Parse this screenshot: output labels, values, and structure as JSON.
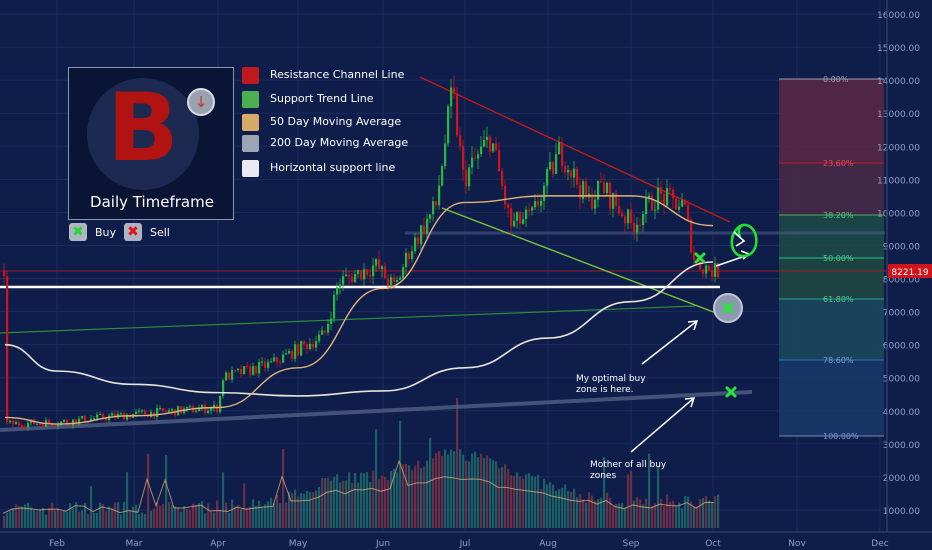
{
  "chart_data": {
    "type": "candlestick",
    "y_axis": {
      "ticks": [
        "16000.00",
        "15000.00",
        "14000.00",
        "13000.00",
        "12000.00",
        "11000.00",
        "10000.00",
        "9000.00",
        "8000.00",
        "7000.00",
        "6000.00",
        "5000.00",
        "4000.00",
        "3000.00",
        "2000.00",
        "1000.00"
      ],
      "current_price": "8221.19"
    },
    "x_axis": {
      "ticks": [
        "Feb",
        "Mar",
        "Apr",
        "May",
        "Jun",
        "Jul",
        "Aug",
        "Sep",
        "Oct",
        "Nov",
        "Dec"
      ]
    },
    "price_path": [
      {
        "x": "Jan",
        "y": 3600
      },
      {
        "x": "Feb",
        "y": 3650
      },
      {
        "x": "Mar",
        "y": 3900
      },
      {
        "x": "Apr 1",
        "y": 4100
      },
      {
        "x": "Apr 2",
        "y": 5000
      },
      {
        "x": "Apr 20",
        "y": 5400
      },
      {
        "x": "May 10",
        "y": 6300
      },
      {
        "x": "May 15",
        "y": 7900
      },
      {
        "x": "May 28",
        "y": 8400
      },
      {
        "x": "Jun 5",
        "y": 7700
      },
      {
        "x": "Jun 10",
        "y": 8800
      },
      {
        "x": "Jun 20",
        "y": 10200
      },
      {
        "x": "Jun 26",
        "y": 13700
      },
      {
        "x": "Jun 30",
        "y": 11000
      },
      {
        "x": "Jul 10",
        "y": 12300
      },
      {
        "x": "Jul 17",
        "y": 9600
      },
      {
        "x": "Jul 25",
        "y": 9900
      },
      {
        "x": "Aug 5",
        "y": 11900
      },
      {
        "x": "Aug 15",
        "y": 10300
      },
      {
        "x": "Aug 20",
        "y": 10800
      },
      {
        "x": "Sep 1",
        "y": 9600
      },
      {
        "x": "Sep 10",
        "y": 10500
      },
      {
        "x": "Sep 20",
        "y": 10200
      },
      {
        "x": "Sep 24",
        "y": 8500
      },
      {
        "x": "Oct 1",
        "y": 8221
      }
    ],
    "ma50": [
      {
        "x": "Jan",
        "y": 3800
      },
      {
        "x": "Feb",
        "y": 3600
      },
      {
        "x": "Mar",
        "y": 3850
      },
      {
        "x": "Apr",
        "y": 4100
      },
      {
        "x": "May",
        "y": 5300
      },
      {
        "x": "Jun",
        "y": 7700
      },
      {
        "x": "Jul",
        "y": 10300
      },
      {
        "x": "Aug",
        "y": 10500
      },
      {
        "x": "Sep",
        "y": 10500
      },
      {
        "x": "Oct",
        "y": 9600
      }
    ],
    "ma200": [
      {
        "x": "Jan",
        "y": 6000
      },
      {
        "x": "Feb",
        "y": 5200
      },
      {
        "x": "Mar",
        "y": 4800
      },
      {
        "x": "Apr",
        "y": 4550
      },
      {
        "x": "May",
        "y": 4450
      },
      {
        "x": "Jun",
        "y": 4600
      },
      {
        "x": "Jul",
        "y": 5300
      },
      {
        "x": "Aug",
        "y": 6200
      },
      {
        "x": "Sep",
        "y": 7300
      },
      {
        "x": "Oct",
        "y": 8500
      }
    ],
    "fibonacci": [
      "0.00%",
      "23.60%",
      "38.20%",
      "50.00%",
      "61.80%",
      "78.60%",
      "100.00%"
    ],
    "annotations": [
      {
        "id": "optimal",
        "text": "My optimal buy zone is here."
      },
      {
        "id": "mother",
        "text": "Mother of all buy zones"
      }
    ]
  },
  "legend": [
    {
      "label": "Resistance Channel Line",
      "color": "#c0191d"
    },
    {
      "label": "Support Trend Line",
      "color": "#4caf50"
    },
    {
      "label": "50 Day Moving Average",
      "color": "#d9a968"
    },
    {
      "label": "200 Day Moving Average",
      "color": "#9aa6b4"
    },
    {
      "label": "Horizontal support line",
      "color": "#eaeaf2"
    }
  ],
  "logo": {
    "text": "Daily Timeframe",
    "symbol": "bitcoin-icon"
  },
  "keys": {
    "buy": "Buy",
    "sell": "Sell"
  },
  "colors": {
    "background": "#0e1d4a",
    "up": "#26a69a",
    "down": "#ef5350",
    "green_up": "#2bb640",
    "red_down": "#d0141c"
  }
}
